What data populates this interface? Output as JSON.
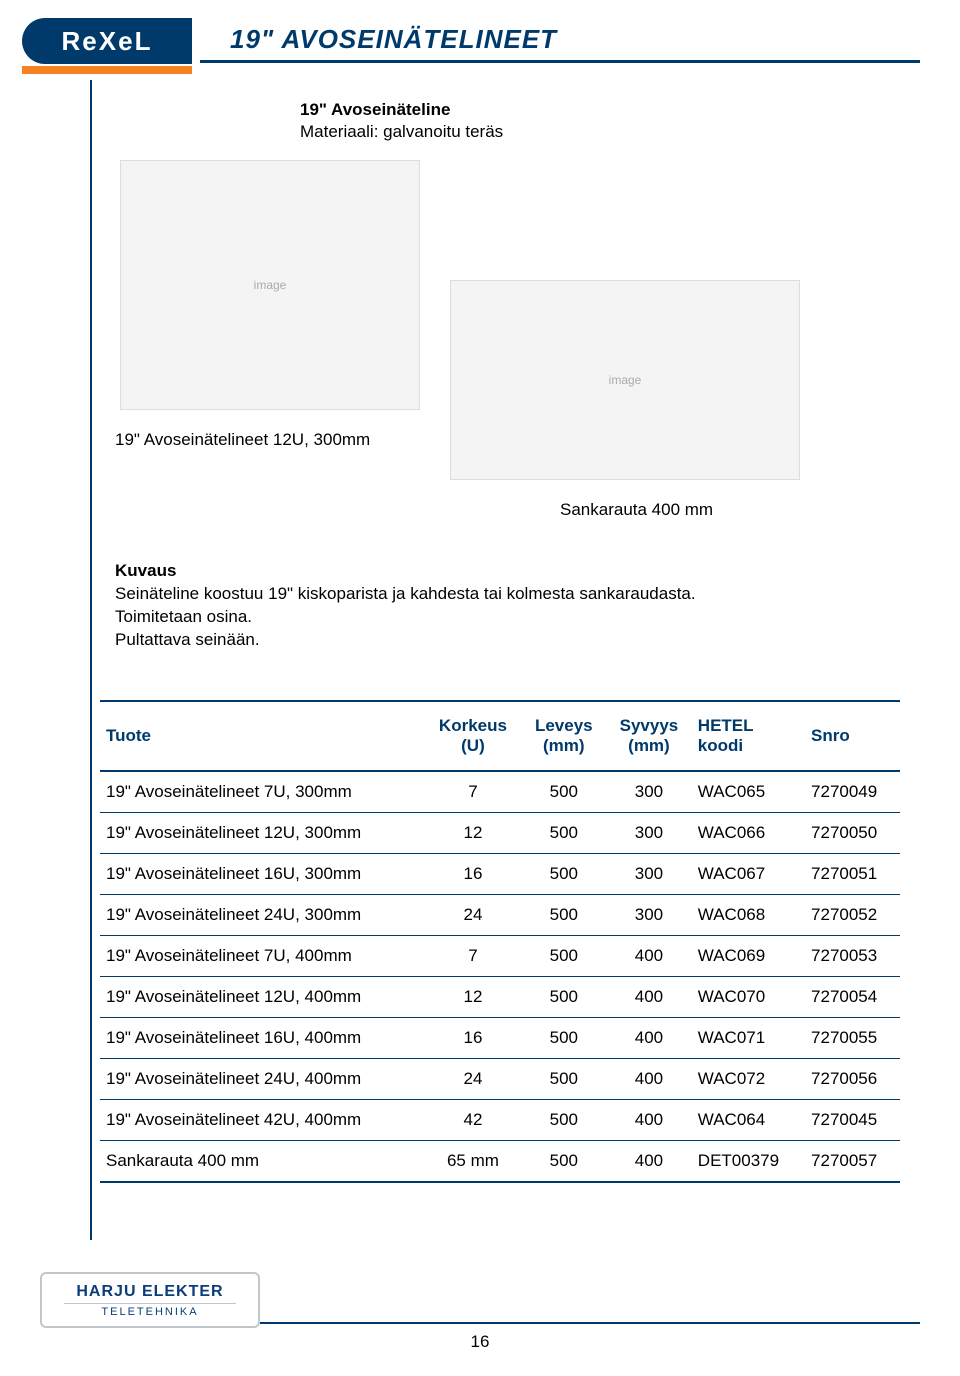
{
  "brand": {
    "logo_text": "ReXeL"
  },
  "page_title": "19\" AVOSEINÄTELINEET",
  "product": {
    "heading": "19\" Avoseinäteline",
    "material": "Materiaali: galvanoitu teräs"
  },
  "captions": {
    "left": "19\" Avoseinätelineet 12U, 300mm",
    "right": "Sankarauta 400 mm"
  },
  "kuvaus": {
    "heading": "Kuvaus",
    "line1": "Seinäteline koostuu 19\" kiskoparista ja kahdesta tai kolmesta sankaraudasta.",
    "line2": "Toimitetaan osina.",
    "line3": "Pultattava seinään."
  },
  "table": {
    "columns": [
      {
        "label": "Tuote",
        "align": "left"
      },
      {
        "label": "Korkeus\n(U)",
        "align": "center"
      },
      {
        "label": "Leveys\n(mm)",
        "align": "center"
      },
      {
        "label": "Syvyys\n(mm)",
        "align": "center"
      },
      {
        "label": "HETEL\nkoodi",
        "align": "left"
      },
      {
        "label": "Snro",
        "align": "left"
      }
    ],
    "rows": [
      [
        "19\" Avoseinätelineet 7U, 300mm",
        "7",
        "500",
        "300",
        "WAC065",
        "7270049"
      ],
      [
        "19\" Avoseinätelineet 12U, 300mm",
        "12",
        "500",
        "300",
        "WAC066",
        "7270050"
      ],
      [
        "19\" Avoseinätelineet 16U, 300mm",
        "16",
        "500",
        "300",
        "WAC067",
        "7270051"
      ],
      [
        "19\" Avoseinätelineet 24U, 300mm",
        "24",
        "500",
        "300",
        "WAC068",
        "7270052"
      ],
      [
        "19\" Avoseinätelineet 7U, 400mm",
        "7",
        "500",
        "400",
        "WAC069",
        "7270053"
      ],
      [
        "19\" Avoseinätelineet 12U, 400mm",
        "12",
        "500",
        "400",
        "WAC070",
        "7270054"
      ],
      [
        "19\" Avoseinätelineet 16U, 400mm",
        "16",
        "500",
        "400",
        "WAC071",
        "7270055"
      ],
      [
        "19\" Avoseinätelineet 24U, 400mm",
        "24",
        "500",
        "400",
        "WAC072",
        "7270056"
      ],
      [
        "19\" Avoseinätelineet 42U, 400mm",
        "42",
        "500",
        "400",
        "WAC064",
        "7270045"
      ],
      [
        "Sankarauta 400 mm",
        "65 mm",
        "500",
        "400",
        "DET00379",
        "7270057"
      ]
    ]
  },
  "footer": {
    "brand1": "HARJU ELEKTER",
    "brand2": "TELETEHNIKA"
  },
  "page_number": "16",
  "colors": {
    "primary": "#003a6a",
    "accent": "#f58220"
  }
}
